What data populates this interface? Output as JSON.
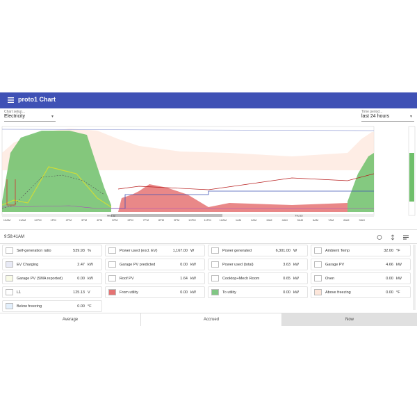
{
  "header": {
    "title": "proto1 Chart"
  },
  "setup": {
    "label": "Chart setup...",
    "value": "Electricity"
  },
  "period": {
    "label": "Time period...",
    "value": "last 24 hours"
  },
  "chart": {
    "x_labels": [
      "10AM",
      "11AM",
      "12PM",
      "1PM",
      "2PM",
      "3PM",
      "4PM",
      "5PM",
      "6PM",
      "7PM",
      "8PM",
      "9PM",
      "10PM",
      "11PM",
      "12AM",
      "1AM",
      "2AM",
      "3AM",
      "4AM",
      "5AM",
      "6AM",
      "7AM",
      "8AM",
      "9AM"
    ],
    "dates": [
      "Wed 22",
      "Thu 23"
    ]
  },
  "time": "9:58:41AM",
  "items": [
    {
      "label": "Self-generation ratio",
      "value": "539.93",
      "unit": "%",
      "color": "#ffffff"
    },
    {
      "label": "Power used (excl. EV)",
      "value": "1,167.00",
      "unit": "W",
      "color": "#ffffff"
    },
    {
      "label": "Power generated",
      "value": "6,301.00",
      "unit": "W",
      "color": "#ffffff"
    },
    {
      "label": "Ambient Temp",
      "value": "32.00",
      "unit": "°F",
      "color": "#ffffff"
    },
    {
      "label": "EV Charging",
      "value": "2.47",
      "unit": "kW",
      "color": "#e8eaf6"
    },
    {
      "label": "Garage PV predicted",
      "value": "0.00",
      "unit": "kW",
      "color": "#ffffff"
    },
    {
      "label": "Power used (total)",
      "value": "3.63",
      "unit": "kW",
      "color": "#ffffff"
    },
    {
      "label": "Garage PV",
      "value": "4.66",
      "unit": "kW",
      "color": "#ffffff"
    },
    {
      "label": "Garage PV (SMA reported)",
      "value": "0.00",
      "unit": "kW",
      "color": "#f9fbe7"
    },
    {
      "label": "Roof PV",
      "value": "1.64",
      "unit": "kW",
      "color": "#ffffff"
    },
    {
      "label": "Cooktop+Mech Room",
      "value": "0.65",
      "unit": "kW",
      "color": "#ffffff"
    },
    {
      "label": "Oven",
      "value": "0.00",
      "unit": "kW",
      "color": "#ffffff"
    },
    {
      "label": "L1",
      "value": "125.13",
      "unit": "V",
      "color": "#ffffff"
    },
    {
      "label": "From utility",
      "value": "0.00",
      "unit": "kW",
      "color": "#e57373"
    },
    {
      "label": "To utility",
      "value": "0.00",
      "unit": "kW",
      "color": "#81c784"
    },
    {
      "label": "Above freezing",
      "value": "0.00",
      "unit": "°F",
      "color": "#fde6da"
    },
    {
      "label": "Below freezing",
      "value": "0.00",
      "unit": "°F",
      "color": "#e3f0fd"
    }
  ],
  "tabs": [
    "Average",
    "Accrued",
    "Now"
  ]
}
